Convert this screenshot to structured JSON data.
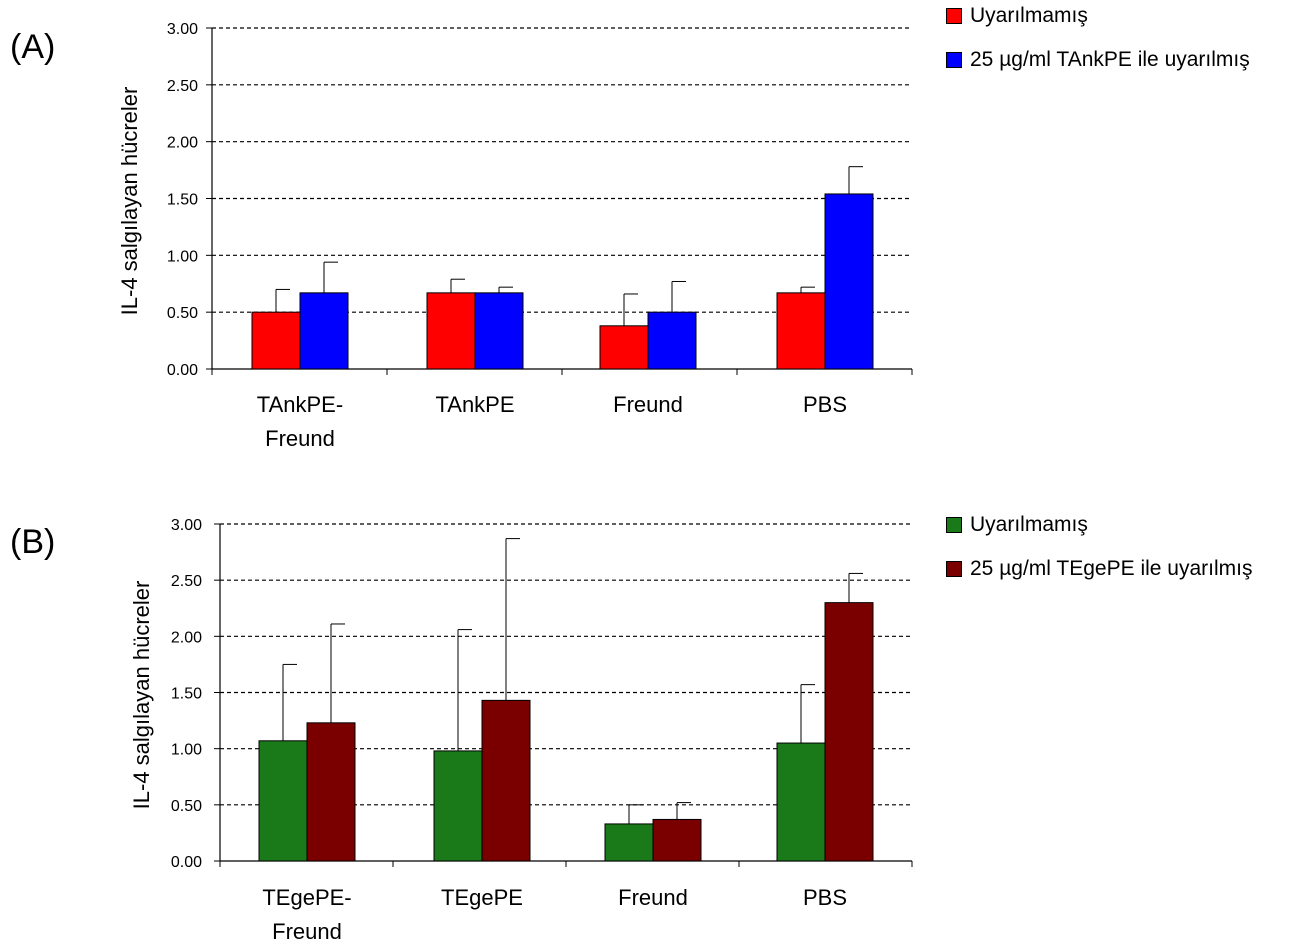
{
  "chart_data": [
    {
      "type": "bar",
      "panel_label": "(A)",
      "ylabel": "IL-4 salgılayan hücreler",
      "ylim": [
        0,
        3
      ],
      "yticks": [
        "0.00",
        "0.50",
        "1.00",
        "1.50",
        "2.00",
        "2.50",
        "3.00"
      ],
      "grid": "dashed horizontal",
      "legend_position": "top-right",
      "categories": [
        "TAnkPE-\nFreund",
        "TAnkPE",
        "Freund",
        "PBS"
      ],
      "series": [
        {
          "name": "Uyarılmamış",
          "color": "#ff0000",
          "values": [
            0.5,
            0.67,
            0.38,
            0.67
          ],
          "errors": [
            0.2,
            0.12,
            0.28,
            0.05
          ]
        },
        {
          "name": "25 µg/ml TAnkPE ile uyarılmış",
          "color": "#0000ff",
          "values": [
            0.67,
            0.67,
            0.5,
            1.54
          ],
          "errors": [
            0.27,
            0.05,
            0.27,
            0.24
          ]
        }
      ]
    },
    {
      "type": "bar",
      "panel_label": "(B)",
      "ylabel": "IL-4 salgılayan hücreler",
      "ylim": [
        0,
        3
      ],
      "yticks": [
        "0.00",
        "0.50",
        "1.00",
        "1.50",
        "2.00",
        "2.50",
        "3.00"
      ],
      "grid": "dashed horizontal",
      "legend_position": "top-right",
      "categories": [
        "TEgePE-\nFreund",
        "TEgePE",
        "Freund",
        "PBS"
      ],
      "series": [
        {
          "name": "Uyarılmamış",
          "color": "#1a7a1a",
          "values": [
            1.07,
            0.98,
            0.33,
            1.05
          ],
          "errors": [
            0.68,
            1.08,
            0.17,
            0.52
          ]
        },
        {
          "name": "25 µg/ml TEgePE ile uyarılmış",
          "color": "#7a0000",
          "values": [
            1.23,
            1.43,
            0.37,
            2.3
          ],
          "errors": [
            0.88,
            1.44,
            0.15,
            0.26
          ]
        }
      ]
    }
  ]
}
